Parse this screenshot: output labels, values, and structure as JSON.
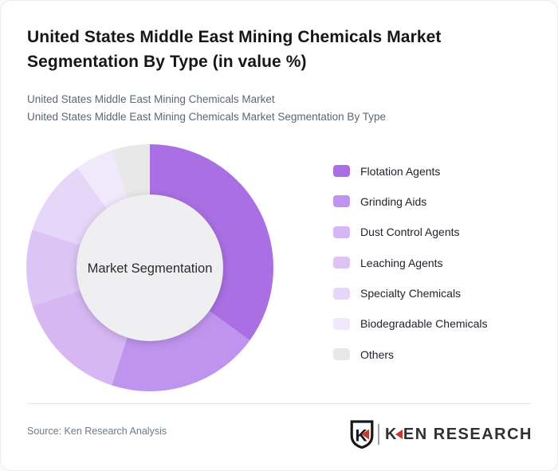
{
  "page": {
    "title": "United States Middle East Mining Chemicals Market Segmentation By Type (in value %)",
    "subtitle_line1": "United States Middle East Mining Chemicals Market",
    "subtitle_line2": "United States Middle East Mining Chemicals Market Segmentation By Type"
  },
  "chart_data": {
    "type": "pie",
    "variant": "donut",
    "title": "United States Middle East Mining Chemicals Market Segmentation By Type (in value %)",
    "center_label": "Market Segmentation",
    "unit": "value %",
    "start_angle_deg": 0,
    "direction": "clockwise",
    "legend_position": "right",
    "categories": [
      "Flotation Agents",
      "Grinding Aids",
      "Dust Control Agents",
      "Leaching Agents",
      "Specialty Chemicals",
      "Biodegradable Chemicals",
      "Others"
    ],
    "values": [
      35,
      20,
      15,
      10,
      10,
      5,
      5
    ],
    "colors": [
      "#ab6fe4",
      "#bf94ee",
      "#d6b7f3",
      "#dcc5f5",
      "#e6d7f8",
      "#f0e8fb",
      "#e8e8e9"
    ],
    "center_fill": "#efeff1",
    "center_text_color": "#2c2c2c",
    "outer_radius": 155,
    "inner_radius": 92
  },
  "footer": {
    "source": "Source: Ken Research Analysis",
    "logo": {
      "badge_letter": "K",
      "word_k": "K",
      "word_rest": "EN RESEARCH",
      "accent_color": "#c43a31"
    }
  }
}
